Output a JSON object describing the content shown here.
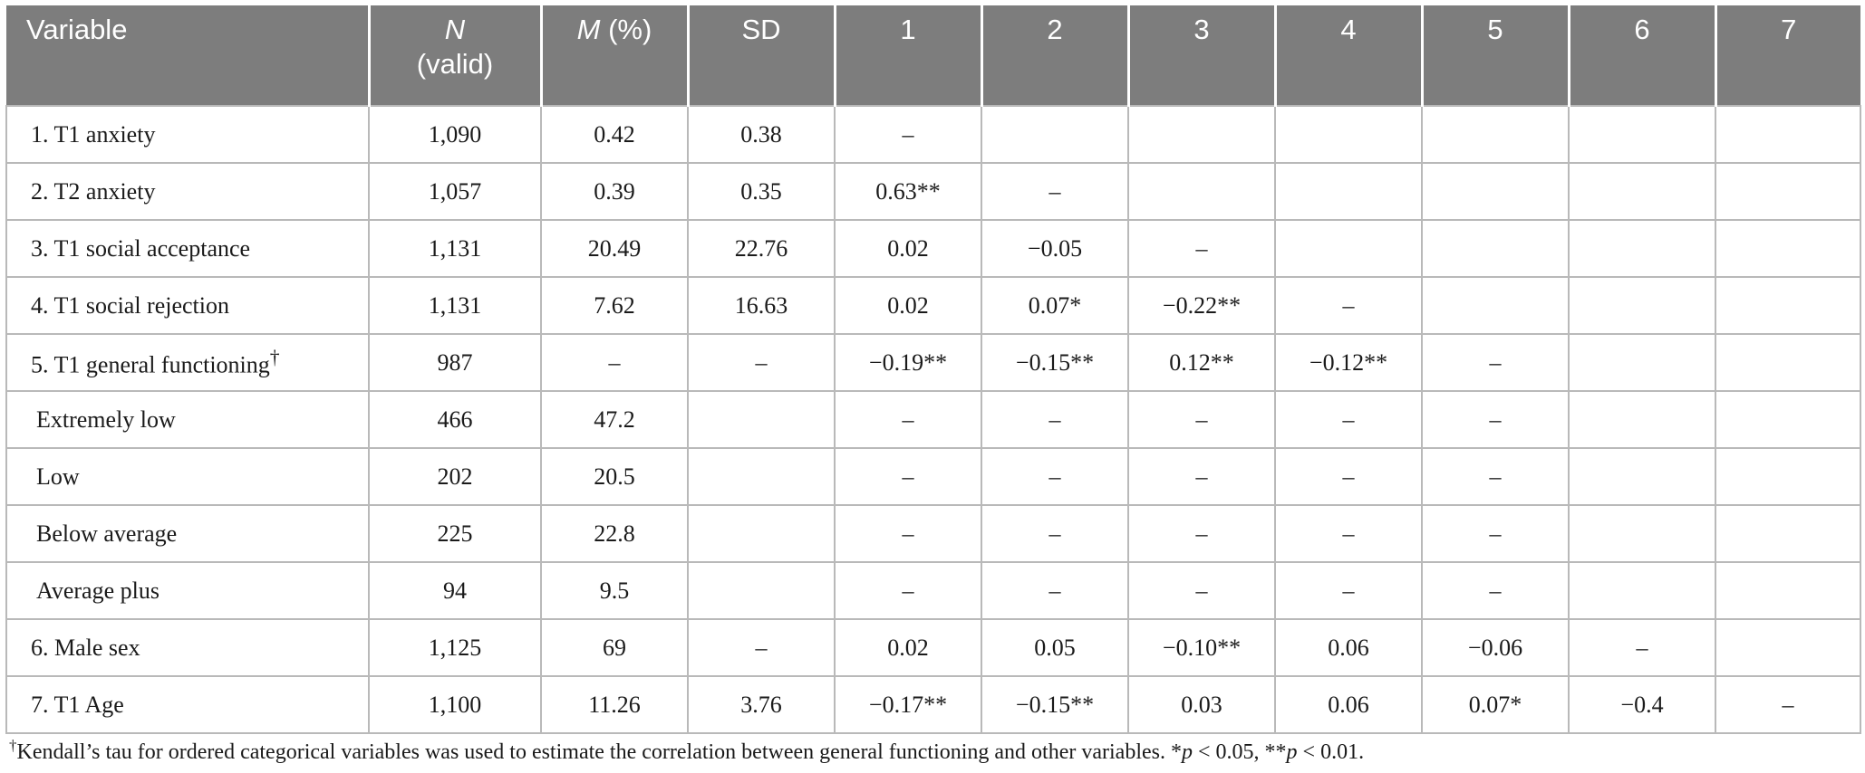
{
  "table": {
    "headers": [
      {
        "main": "Variable",
        "sub": ""
      },
      {
        "main": "N",
        "sub": "(valid)",
        "italic": true
      },
      {
        "main": "M",
        "sub": "(%)",
        "italic": true,
        "inline": true
      },
      {
        "main": "SD",
        "sub": ""
      },
      {
        "main": "1",
        "sub": ""
      },
      {
        "main": "2",
        "sub": ""
      },
      {
        "main": "3",
        "sub": ""
      },
      {
        "main": "4",
        "sub": ""
      },
      {
        "main": "5",
        "sub": ""
      },
      {
        "main": "6",
        "sub": ""
      },
      {
        "main": "7",
        "sub": ""
      }
    ],
    "rows": [
      {
        "variable": "1. T1 anxiety",
        "mark": "",
        "sub": false,
        "cells": [
          "1,090",
          "0.42",
          "0.38",
          "–",
          "",
          "",
          "",
          "",
          "",
          ""
        ]
      },
      {
        "variable": "2. T2 anxiety",
        "mark": "",
        "sub": false,
        "cells": [
          "1,057",
          "0.39",
          "0.35",
          "0.63**",
          "–",
          "",
          "",
          "",
          "",
          ""
        ]
      },
      {
        "variable": "3. T1 social acceptance",
        "mark": "",
        "sub": false,
        "cells": [
          "1,131",
          "20.49",
          "22.76",
          "0.02",
          "−0.05",
          "–",
          "",
          "",
          "",
          ""
        ]
      },
      {
        "variable": "4. T1 social rejection",
        "mark": "",
        "sub": false,
        "cells": [
          "1,131",
          "7.62",
          "16.63",
          "0.02",
          "0.07*",
          "−0.22**",
          "–",
          "",
          "",
          ""
        ]
      },
      {
        "variable": "5. T1 general functioning",
        "mark": "†",
        "sub": false,
        "cells": [
          "987",
          "–",
          "–",
          "−0.19**",
          "−0.15**",
          "0.12**",
          "−0.12**",
          "–",
          "",
          ""
        ]
      },
      {
        "variable": "Extremely low",
        "mark": "",
        "sub": true,
        "cells": [
          "466",
          "47.2",
          "",
          "–",
          "–",
          "–",
          "–",
          "–",
          "",
          ""
        ]
      },
      {
        "variable": "Low",
        "mark": "",
        "sub": true,
        "cells": [
          "202",
          "20.5",
          "",
          "–",
          "–",
          "–",
          "–",
          "–",
          "",
          ""
        ]
      },
      {
        "variable": "Below average",
        "mark": "",
        "sub": true,
        "cells": [
          "225",
          "22.8",
          "",
          "–",
          "–",
          "–",
          "–",
          "–",
          "",
          ""
        ]
      },
      {
        "variable": "Average plus",
        "mark": "",
        "sub": true,
        "cells": [
          "94",
          "9.5",
          "",
          "–",
          "–",
          "–",
          "–",
          "–",
          "",
          ""
        ]
      },
      {
        "variable": "6. Male sex",
        "mark": "",
        "sub": false,
        "cells": [
          "1,125",
          "69",
          "–",
          "0.02",
          "0.05",
          "−0.10**",
          "0.06",
          "−0.06",
          "–",
          ""
        ]
      },
      {
        "variable": "7. T1 Age",
        "mark": "",
        "sub": false,
        "cells": [
          "1,100",
          "11.26",
          "3.76",
          "−0.17**",
          "−0.15**",
          "0.03",
          "0.06",
          "0.07*",
          "−0.4",
          "–"
        ]
      }
    ]
  },
  "footnote": {
    "dagger": "†",
    "text": "Kendall’s tau for ordered categorical variables was used to estimate the correlation between general functioning and other variables. *",
    "p1": "p",
    "t1": " < 0.05, **",
    "p2": "p",
    "t2": " < 0.01."
  },
  "colors": {
    "header_bg": "#7d7d7d",
    "header_text": "#ffffff",
    "grid": "#b9b9b9"
  }
}
